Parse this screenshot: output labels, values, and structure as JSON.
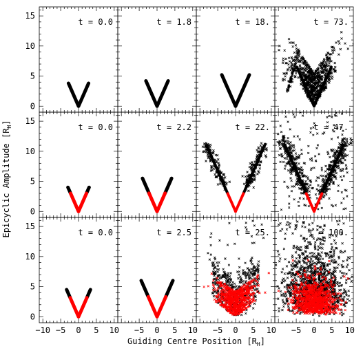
{
  "chart_data": {
    "type": "scatter",
    "layout": {
      "rows": 3,
      "cols": 4,
      "shared_axes": true
    },
    "xlabel": "Guiding Centre Position [R",
    "xlabel_sub": "H",
    "xlabel_close": "]",
    "ylabel": "Epicyclic Amplitude [R",
    "ylabel_sub": "H",
    "ylabel_close": "]",
    "xlim": [
      -11,
      11
    ],
    "ylim": [
      -1,
      16.5
    ],
    "xticks": [
      -10,
      -5,
      0,
      5,
      10
    ],
    "xtick_labels": [
      "−10",
      "−5",
      "0",
      "5",
      "10"
    ],
    "yticks": [
      0,
      5,
      10,
      15
    ],
    "ytick_labels": [
      "0",
      "5",
      "10",
      "15"
    ],
    "colors": {
      "black_particles": "#000000",
      "red_particles": "#ff0000"
    },
    "panels": [
      {
        "row": 0,
        "col": 0,
        "time_label": "t = 0.0",
        "v_max_height": 3.8,
        "red_fraction": 0.0,
        "scatter": "none"
      },
      {
        "row": 0,
        "col": 1,
        "time_label": "t = 1.8",
        "v_max_height": 4.2,
        "red_fraction": 0.0,
        "scatter": "none"
      },
      {
        "row": 0,
        "col": 2,
        "time_label": "t = 18.",
        "v_max_height": 5.2,
        "red_fraction": 0.0,
        "scatter": "none"
      },
      {
        "row": 0,
        "col": 3,
        "time_label": "t = 73.",
        "v_max_height": 6.5,
        "red_fraction": 0.0,
        "scatter": "cloud"
      },
      {
        "row": 1,
        "col": 0,
        "time_label": "t = 0.0",
        "v_max_height": 4.0,
        "red_fraction": 0.75,
        "scatter": "none"
      },
      {
        "row": 1,
        "col": 1,
        "time_label": "t = 2.2",
        "v_max_height": 5.5,
        "red_fraction": 0.55,
        "scatter": "none"
      },
      {
        "row": 1,
        "col": 2,
        "time_label": "t = 22.",
        "v_max_height": 11.0,
        "red_fraction": 0.27,
        "scatter": "light"
      },
      {
        "row": 1,
        "col": 3,
        "time_label": "t = 47.",
        "v_max_height": 11.0,
        "red_fraction": 0.27,
        "scatter": "heavy"
      },
      {
        "row": 2,
        "col": 0,
        "time_label": "t = 0.0",
        "v_max_height": 4.5,
        "red_fraction": 0.7,
        "scatter": "none"
      },
      {
        "row": 2,
        "col": 1,
        "time_label": "t = 2.5",
        "v_max_height": 6.0,
        "red_fraction": 0.55,
        "scatter": "none"
      },
      {
        "row": 2,
        "col": 2,
        "time_label": "t = 25.",
        "v_max_height": 10.5,
        "red_fraction": 0.45,
        "scatter": "bowl"
      },
      {
        "row": 2,
        "col": 3,
        "time_label": "t = 100.",
        "v_max_height": 12.0,
        "red_fraction": 0.45,
        "scatter": "cloud-red"
      }
    ]
  }
}
